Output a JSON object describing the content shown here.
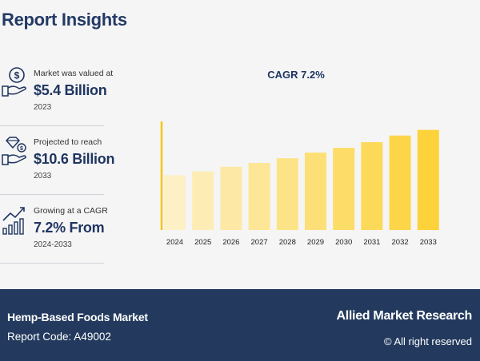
{
  "header": {
    "title": "Report Insights"
  },
  "stats": [
    {
      "label": "Market was valued at",
      "value": "$5.4 Billion",
      "year": "2023",
      "icon": "money-hand-icon"
    },
    {
      "label": "Projected to reach",
      "value": "$10.6 Billion",
      "year": "2033",
      "icon": "diamond-hand-icon"
    },
    {
      "label": "Growing at a CAGR",
      "value": "7.2% From",
      "year": "2024-2033",
      "icon": "growth-chart-icon"
    }
  ],
  "chart_data": {
    "type": "bar",
    "title": "CAGR 7.2%",
    "categories": [
      "2024",
      "2025",
      "2026",
      "2027",
      "2028",
      "2029",
      "2030",
      "2031",
      "2032",
      "2033"
    ],
    "values": [
      5.8,
      6.2,
      6.7,
      7.1,
      7.6,
      8.2,
      8.7,
      9.3,
      10.0,
      10.6
    ],
    "ylim": [
      0,
      11.5
    ],
    "grid": false,
    "colors": {
      "start": "#fdf0c4",
      "end": "#fdd23a",
      "axis": "#f5c518"
    }
  },
  "footer": {
    "market": "Hemp-Based Foods Market",
    "report_code": "Report Code: A49002",
    "brand": "Allied Market Research",
    "rights": "© All right reserved"
  }
}
